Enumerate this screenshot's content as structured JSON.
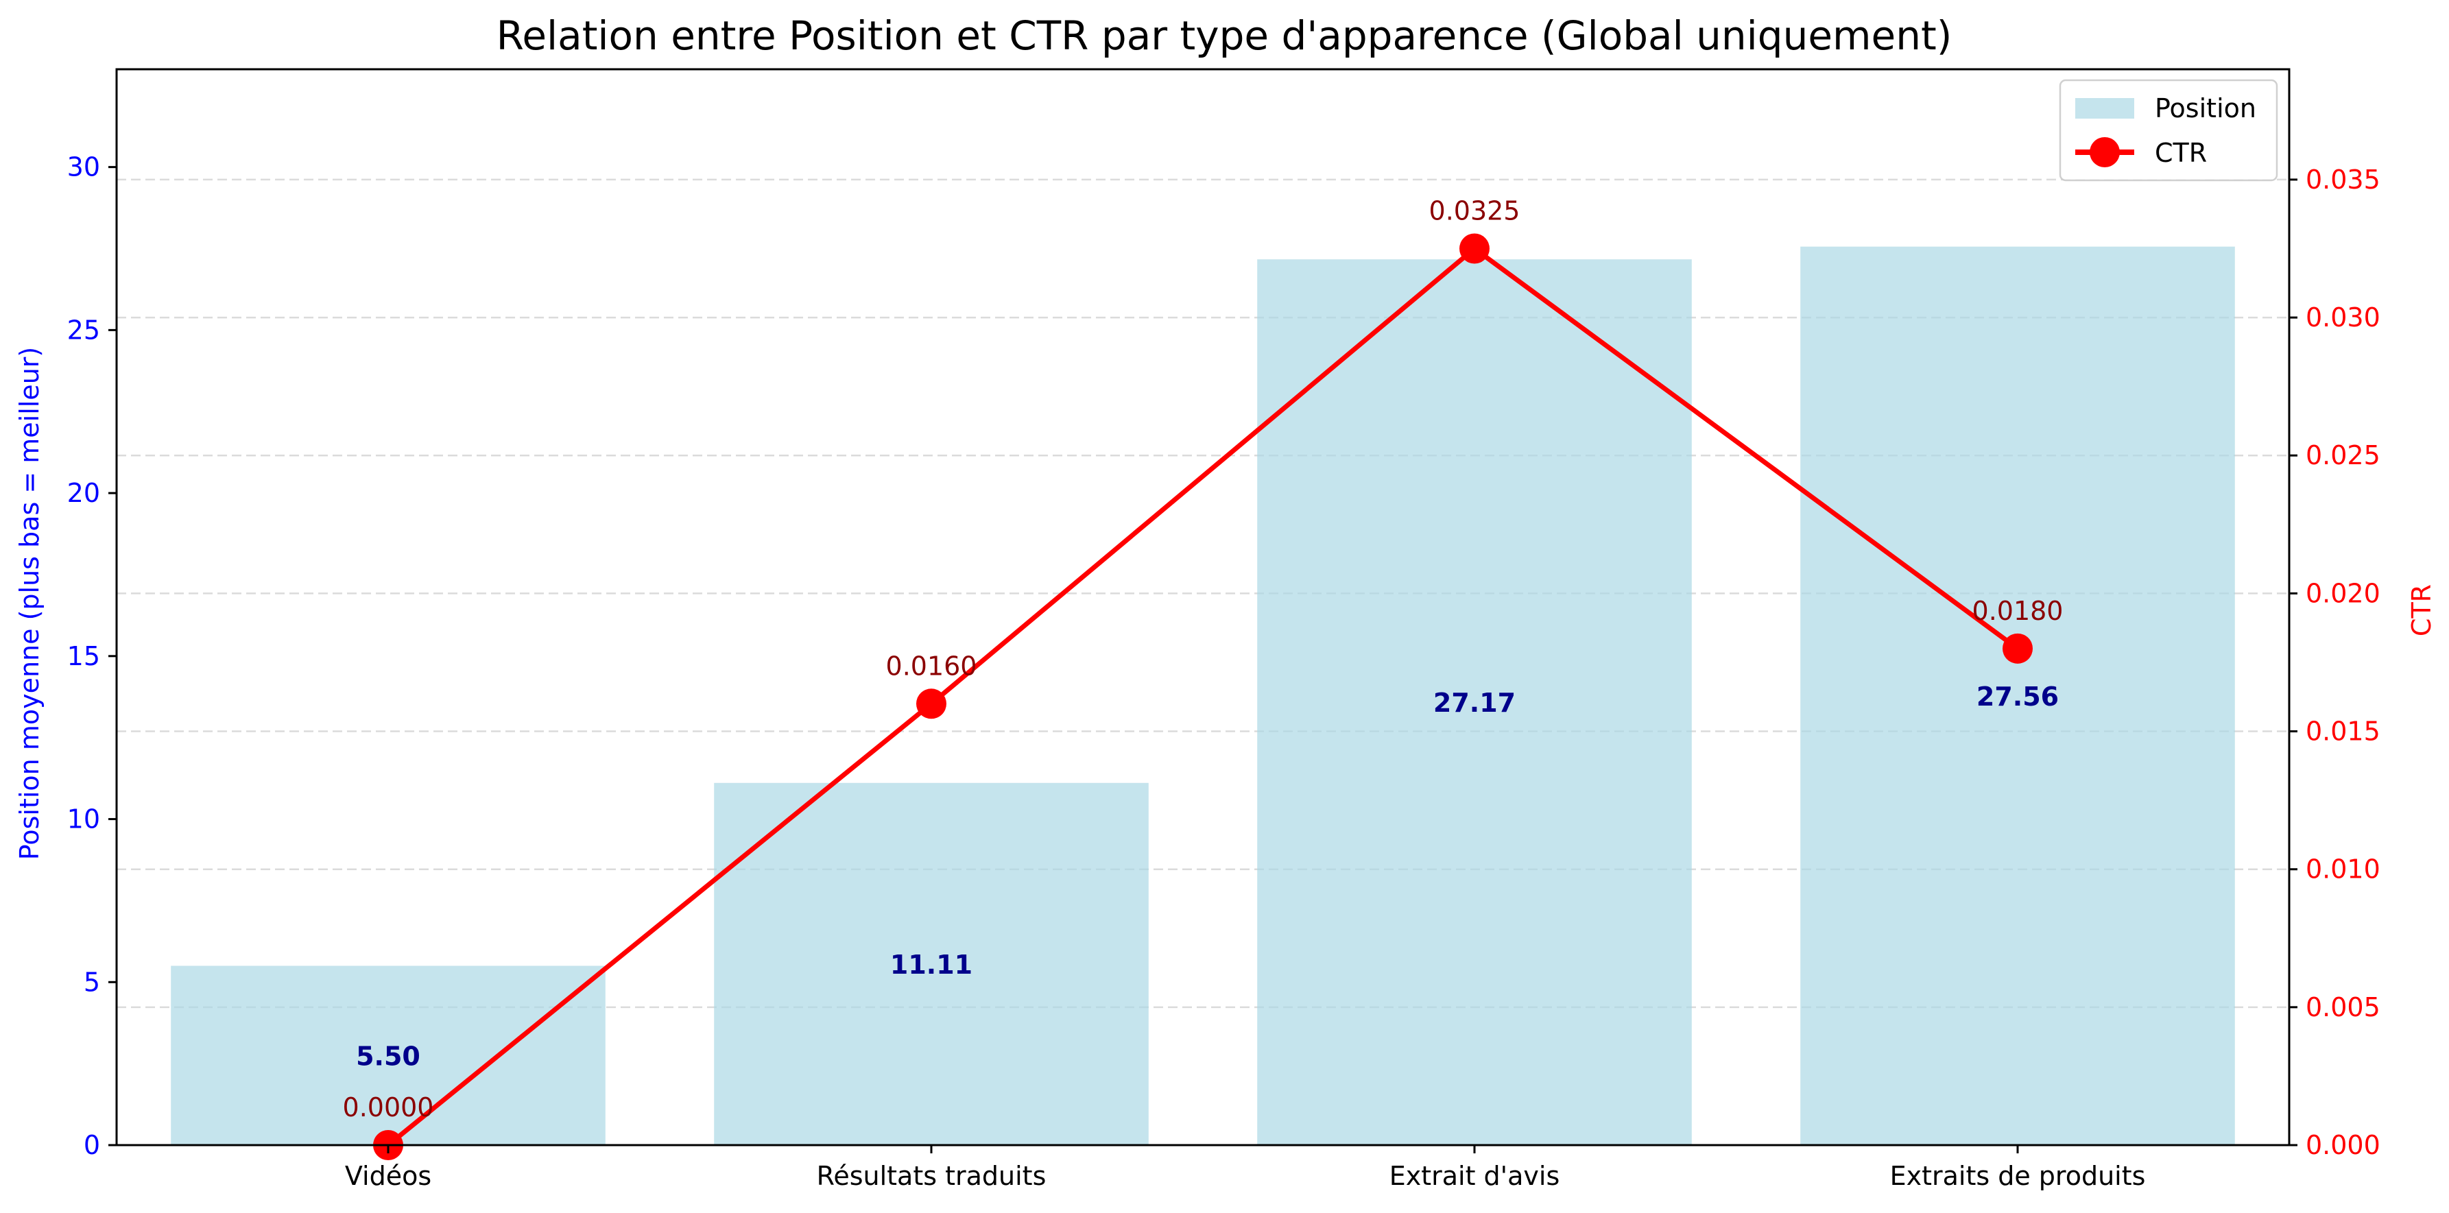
{
  "chart_data": {
    "type": "bar",
    "title": "Relation entre Position et CTR par type d'apparence (Global uniquement)",
    "categories": [
      "Vidéos",
      "Résultats traduits",
      "Extrait d'avis",
      "Extraits de produits"
    ],
    "ylabel": "Position moyenne (plus bas = meilleur)",
    "ylim": [
      0,
      33
    ],
    "yticks": [
      0,
      5,
      10,
      15,
      20,
      25,
      30
    ],
    "y2label": "CTR",
    "y2lim": [
      0,
      0.039
    ],
    "y2ticks": [
      0,
      0.005,
      0.01,
      0.015,
      0.02,
      0.025,
      0.03,
      0.035
    ],
    "grid": true,
    "legend_position": "top-right",
    "series": [
      {
        "name": "Position",
        "type": "bar",
        "axis": "left",
        "values": [
          5.5,
          11.11,
          27.17,
          27.56
        ],
        "labels": [
          "5.50",
          "11.11",
          "27.17",
          "27.56"
        ],
        "color": "#add8e6"
      },
      {
        "name": "CTR",
        "type": "line",
        "axis": "right",
        "values": [
          0.0,
          0.016,
          0.0325,
          0.018
        ],
        "labels": [
          "0.0000",
          "0.0160",
          "0.0325",
          "0.0180"
        ],
        "color": "#ff0000"
      }
    ],
    "colors": {
      "left_axis": "#0000ff",
      "right_axis": "#ff0000",
      "bar_label": "#00008b",
      "line_label": "#8b0000"
    }
  }
}
